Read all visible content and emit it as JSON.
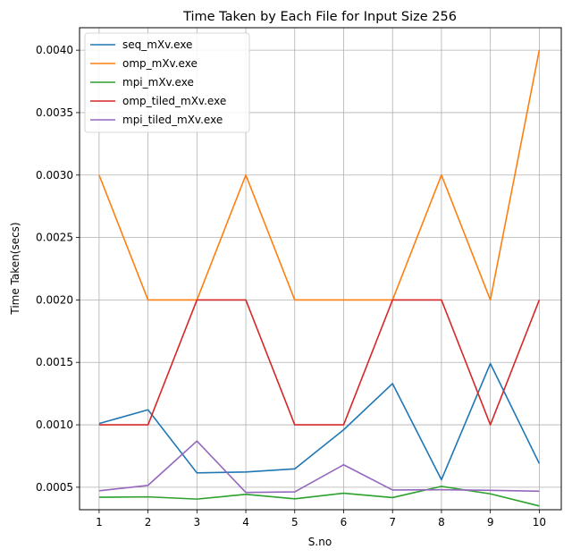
{
  "chart_data": {
    "type": "line",
    "title": "Time Taken by Each File for Input Size 256",
    "xlabel": "S.no",
    "ylabel": "Time Taken(secs)",
    "x": [
      1,
      2,
      3,
      4,
      5,
      6,
      7,
      8,
      9,
      10
    ],
    "x_ticks": [
      "1",
      "2",
      "3",
      "4",
      "5",
      "6",
      "7",
      "8",
      "9",
      "10"
    ],
    "y_ticks": [
      "0.0005",
      "0.0010",
      "0.0015",
      "0.0020",
      "0.0025",
      "0.0030",
      "0.0035",
      "0.0040"
    ],
    "y_tick_values": [
      0.0005,
      0.001,
      0.0015,
      0.002,
      0.0025,
      0.003,
      0.0035,
      0.004
    ],
    "xlim": [
      0.6,
      10.45
    ],
    "ylim": [
      0.00032,
      0.00418
    ],
    "grid": true,
    "legend_position": "top-left",
    "series": [
      {
        "name": "seq_mXv.exe",
        "color": "#1f77b4",
        "values": [
          0.00101,
          0.00112,
          0.000615,
          0.000622,
          0.000647,
          0.00096,
          0.00133,
          0.00056,
          0.00149,
          0.00069
        ]
      },
      {
        "name": "omp_mXv.exe",
        "color": "#ff7f0e",
        "values": [
          0.003,
          0.002,
          0.002,
          0.003,
          0.002,
          0.002,
          0.002,
          0.003,
          0.002,
          0.004
        ]
      },
      {
        "name": "mpi_mXv.exe",
        "color": "#2ca02c",
        "values": [
          0.00042,
          0.000423,
          0.000405,
          0.000443,
          0.000407,
          0.000452,
          0.000417,
          0.000507,
          0.000447,
          0.00035
        ]
      },
      {
        "name": "omp_tiled_mXv.exe",
        "color": "#d62728",
        "values": [
          0.001,
          0.001,
          0.002,
          0.002,
          0.001,
          0.001,
          0.002,
          0.002,
          0.001,
          0.002
        ]
      },
      {
        "name": "mpi_tiled_mXv.exe",
        "color": "#9467bd",
        "values": [
          0.000472,
          0.000515,
          0.00087,
          0.000458,
          0.000463,
          0.00068,
          0.000478,
          0.00048,
          0.000475,
          0.000468
        ]
      }
    ]
  }
}
